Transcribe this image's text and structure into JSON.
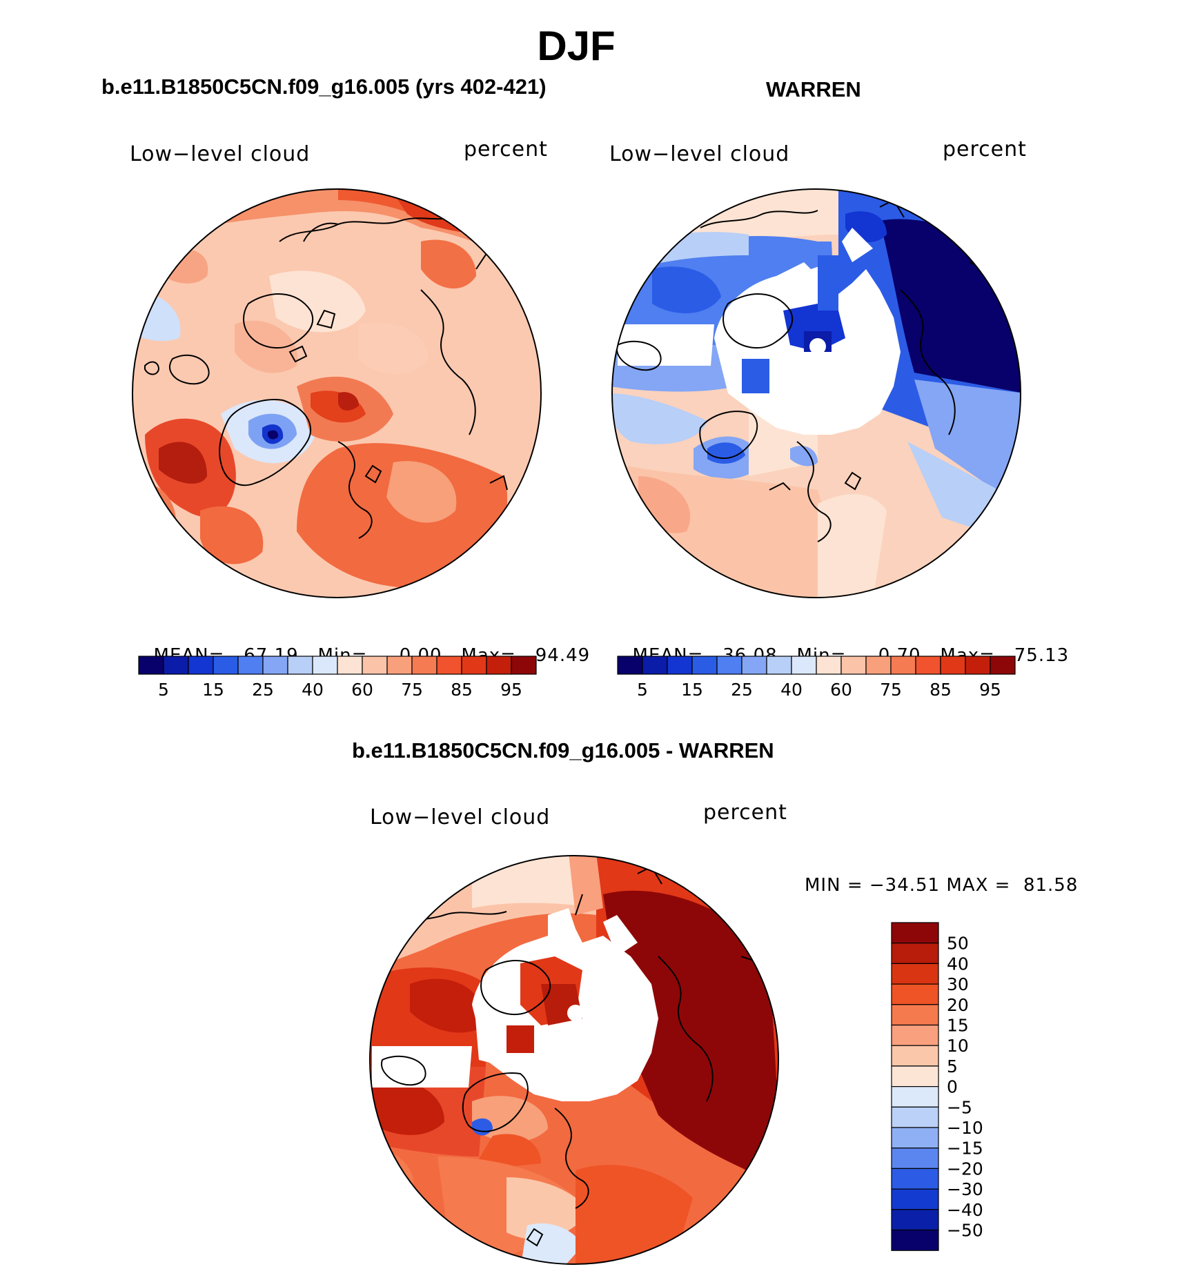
{
  "figure": {
    "title": "DJF",
    "panels": [
      {
        "id": "model",
        "header": "b.e11.B1850C5CN.f09_g16.005 (yrs 402-421)",
        "variable_label": "Low−level cloud",
        "units_label": "percent",
        "stats": {
          "mean_label": "MEAN=",
          "mean": "67.19",
          "min_label": "Min=",
          "min": "0.00",
          "max_label": "Max=",
          "max": "94.49"
        },
        "colorbar_ticks": [
          "5",
          "15",
          "25",
          "40",
          "60",
          "75",
          "85",
          "95"
        ],
        "colorbar_colors": [
          "#08006b",
          "#0a1ca8",
          "#1335d2",
          "#2a5ce6",
          "#4f7ff0",
          "#84a6f4",
          "#b8cff7",
          "#dbe8fb",
          "#fde3d3",
          "#fbc4a9",
          "#f8a07c",
          "#f57b52",
          "#f0532d",
          "#e13818",
          "#c41f0b",
          "#8e0708"
        ],
        "colorbar_bounds": [
          5,
          10,
          15,
          20,
          25,
          30,
          40,
          50,
          60,
          70,
          75,
          80,
          85,
          90,
          95
        ]
      },
      {
        "id": "obs",
        "header": "WARREN",
        "variable_label": "Low−level cloud",
        "units_label": "percent",
        "stats": {
          "mean_label": "MEAN=",
          "mean": "36.08",
          "min_label": "Min=",
          "min": "0.70",
          "max_label": "Max=",
          "max": "75.13"
        },
        "colorbar_ticks": [
          "5",
          "15",
          "25",
          "40",
          "60",
          "75",
          "85",
          "95"
        ],
        "colorbar_colors": [
          "#08006b",
          "#0a1ca8",
          "#1335d2",
          "#2a5ce6",
          "#4f7ff0",
          "#84a6f4",
          "#b8cff7",
          "#dbe8fb",
          "#fde3d3",
          "#fbc4a9",
          "#f8a07c",
          "#f57b52",
          "#f0532d",
          "#e13818",
          "#c41f0b",
          "#8e0708"
        ],
        "colorbar_bounds": [
          5,
          10,
          15,
          20,
          25,
          30,
          40,
          50,
          60,
          70,
          75,
          80,
          85,
          90,
          95
        ]
      },
      {
        "id": "diff",
        "header": "b.e11.B1850C5CN.f09_g16.005 - WARREN",
        "variable_label": "Low−level cloud",
        "units_label": "percent",
        "minmax_text": "MIN = −34.51 MAX =  81.58",
        "colorbar_ticks": [
          "50",
          "40",
          "30",
          "20",
          "15",
          "10",
          "5",
          "0",
          "−5",
          "−10",
          "−15",
          "−20",
          "−30",
          "−40",
          "−50"
        ],
        "colorbar_colors": [
          "#8e0708",
          "#b81c0a",
          "#d93512",
          "#ef5426",
          "#f57a4e",
          "#f9a07e",
          "#fbc7aa",
          "#fde5d6",
          "#dce9fb",
          "#bbd1f7",
          "#8fb0f5",
          "#5c86ef",
          "#2c5ce5",
          "#133bd0",
          "#0a20a8",
          "#08006b"
        ],
        "colorbar_bounds": [
          50,
          40,
          30,
          20,
          15,
          10,
          5,
          0,
          -5,
          -10,
          -15,
          -20,
          -30,
          -40,
          -50
        ]
      }
    ]
  }
}
